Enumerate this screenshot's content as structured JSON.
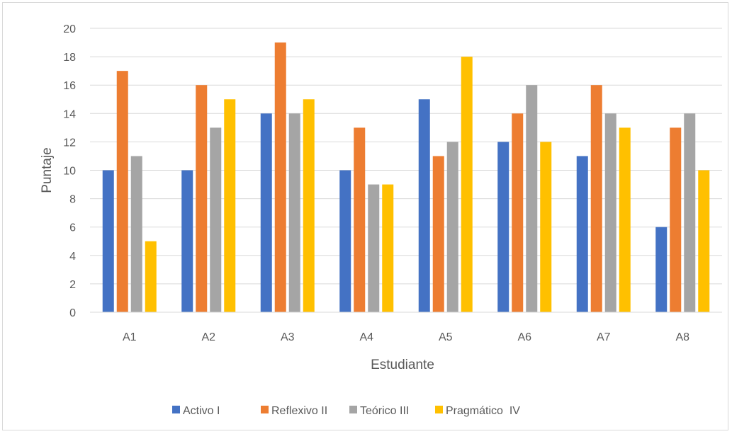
{
  "chart_data": {
    "type": "bar",
    "title": "",
    "xlabel": "Estudiante",
    "ylabel": "Puntaje",
    "ylim": [
      0,
      20
    ],
    "ytick_step": 2,
    "yticks": [
      "0",
      "2",
      "4",
      "6",
      "8",
      "10",
      "12",
      "14",
      "16",
      "18",
      "20"
    ],
    "grid": true,
    "legend_position": "bottom",
    "categories": [
      "A1",
      "A2",
      "A3",
      "A4",
      "A5",
      "A6",
      "A7",
      "A8"
    ],
    "series": [
      {
        "name": "Activo I",
        "color": "#4472c4",
        "values": [
          10,
          10,
          14,
          10,
          15,
          12,
          11,
          6
        ]
      },
      {
        "name": "Reflexivo II",
        "color": "#ed7d31",
        "values": [
          17,
          16,
          19,
          13,
          11,
          14,
          16,
          13
        ]
      },
      {
        "name": "Teórico III",
        "color": "#a5a5a5",
        "values": [
          11,
          13,
          14,
          9,
          12,
          16,
          14,
          14
        ]
      },
      {
        "name": "Pragmático  IV",
        "color": "#ffc000",
        "values": [
          5,
          15,
          15,
          9,
          18,
          12,
          13,
          10
        ]
      }
    ]
  }
}
